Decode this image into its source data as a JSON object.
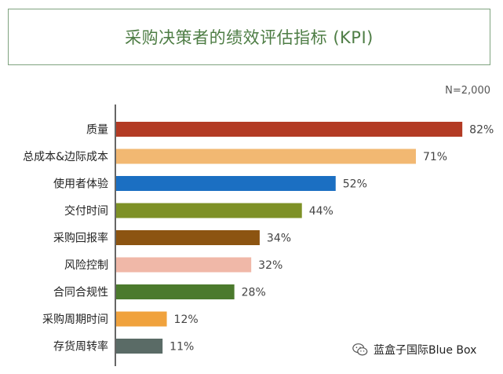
{
  "chart_data": {
    "type": "bar",
    "orientation": "horizontal",
    "title": "采购决策者的绩效评估指标 (KPI)",
    "note": "N=2,000",
    "categories": [
      "质量",
      "总成本&边际成本",
      "使用者体验",
      "交付时间",
      "采购回报率",
      "风险控制",
      "合同合规性",
      "采购周期时间",
      "存货周转率"
    ],
    "values": [
      82,
      71,
      52,
      44,
      34,
      32,
      28,
      12,
      11
    ],
    "value_labels": [
      "82%",
      "71%",
      "52%",
      "44%",
      "34%",
      "32%",
      "28%",
      "12%",
      "11%"
    ],
    "colors": [
      "#b33b24",
      "#f2b872",
      "#1b6fc2",
      "#7e9126",
      "#8c5411",
      "#f0b8a8",
      "#4b7a2d",
      "#f0a23d",
      "#5a6b66"
    ],
    "unit": "%",
    "xlim": [
      0,
      100
    ],
    "grid": false,
    "legend": "none"
  },
  "watermark": {
    "text": "蓝盒子国际Blue Box",
    "icon": "wechat-icon"
  }
}
